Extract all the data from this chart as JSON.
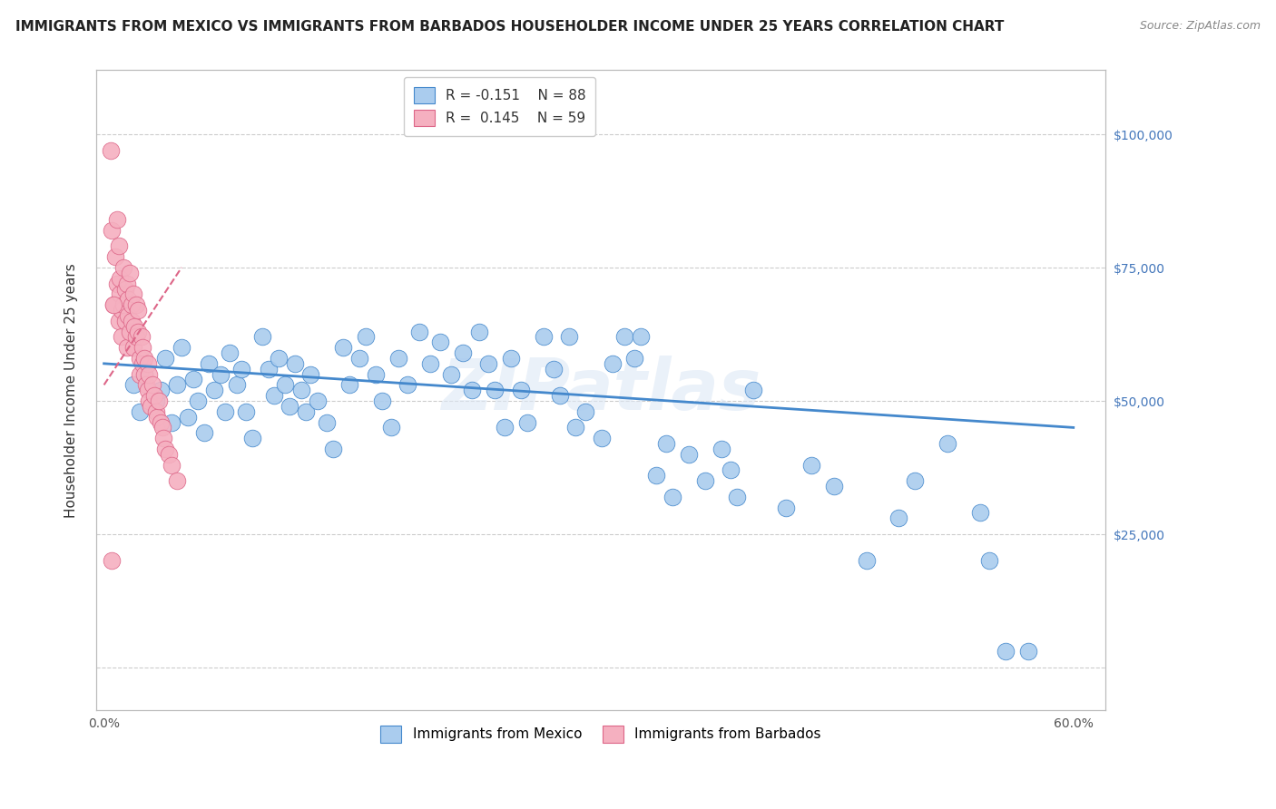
{
  "title": "IMMIGRANTS FROM MEXICO VS IMMIGRANTS FROM BARBADOS HOUSEHOLDER INCOME UNDER 25 YEARS CORRELATION CHART",
  "source": "Source: ZipAtlas.com",
  "ylabel": "Householder Income Under 25 years",
  "xlim": [
    -0.005,
    0.62
  ],
  "ylim": [
    -8000,
    112000
  ],
  "yticks": [
    0,
    25000,
    50000,
    75000,
    100000
  ],
  "right_ytick_labels": [
    "",
    "$25,000",
    "$50,000",
    "$75,000",
    "$100,000"
  ],
  "xticks": [
    0.0,
    0.1,
    0.2,
    0.3,
    0.4,
    0.5,
    0.6
  ],
  "xtick_labels": [
    "0.0%",
    "",
    "",
    "",
    "",
    "",
    "60.0%"
  ],
  "color_mexico": "#aaccee",
  "color_barbados": "#f5b0c0",
  "color_line_mexico": "#4488cc",
  "color_line_barbados": "#dd6688",
  "color_right_axis": "#4477bb",
  "watermark": "ZIPatlas",
  "mexico_x": [
    0.018,
    0.022,
    0.025,
    0.032,
    0.035,
    0.038,
    0.042,
    0.045,
    0.048,
    0.052,
    0.055,
    0.058,
    0.062,
    0.065,
    0.068,
    0.072,
    0.075,
    0.078,
    0.082,
    0.085,
    0.088,
    0.092,
    0.098,
    0.102,
    0.105,
    0.108,
    0.112,
    0.115,
    0.118,
    0.122,
    0.125,
    0.128,
    0.132,
    0.138,
    0.142,
    0.148,
    0.152,
    0.158,
    0.162,
    0.168,
    0.172,
    0.178,
    0.182,
    0.188,
    0.195,
    0.202,
    0.208,
    0.215,
    0.222,
    0.228,
    0.232,
    0.238,
    0.242,
    0.248,
    0.252,
    0.258,
    0.262,
    0.272,
    0.278,
    0.282,
    0.288,
    0.292,
    0.298,
    0.308,
    0.315,
    0.322,
    0.328,
    0.332,
    0.342,
    0.348,
    0.352,
    0.362,
    0.372,
    0.382,
    0.388,
    0.392,
    0.402,
    0.422,
    0.438,
    0.452,
    0.472,
    0.492,
    0.502,
    0.522,
    0.542,
    0.548,
    0.558,
    0.572
  ],
  "mexico_y": [
    53000,
    48000,
    55000,
    50000,
    52000,
    58000,
    46000,
    53000,
    60000,
    47000,
    54000,
    50000,
    44000,
    57000,
    52000,
    55000,
    48000,
    59000,
    53000,
    56000,
    48000,
    43000,
    62000,
    56000,
    51000,
    58000,
    53000,
    49000,
    57000,
    52000,
    48000,
    55000,
    50000,
    46000,
    41000,
    60000,
    53000,
    58000,
    62000,
    55000,
    50000,
    45000,
    58000,
    53000,
    63000,
    57000,
    61000,
    55000,
    59000,
    52000,
    63000,
    57000,
    52000,
    45000,
    58000,
    52000,
    46000,
    62000,
    56000,
    51000,
    62000,
    45000,
    48000,
    43000,
    57000,
    62000,
    58000,
    62000,
    36000,
    42000,
    32000,
    40000,
    35000,
    41000,
    37000,
    32000,
    52000,
    30000,
    38000,
    34000,
    20000,
    28000,
    35000,
    42000,
    29000,
    20000,
    3000,
    3000
  ],
  "barbados_x": [
    0.004,
    0.005,
    0.006,
    0.007,
    0.008,
    0.008,
    0.009,
    0.009,
    0.01,
    0.01,
    0.011,
    0.011,
    0.012,
    0.012,
    0.013,
    0.013,
    0.014,
    0.014,
    0.015,
    0.015,
    0.016,
    0.016,
    0.017,
    0.017,
    0.018,
    0.018,
    0.019,
    0.02,
    0.02,
    0.021,
    0.021,
    0.022,
    0.022,
    0.023,
    0.024,
    0.024,
    0.025,
    0.025,
    0.026,
    0.027,
    0.027,
    0.028,
    0.028,
    0.029,
    0.03,
    0.031,
    0.032,
    0.033,
    0.034,
    0.035,
    0.036,
    0.037,
    0.038,
    0.04,
    0.042,
    0.045,
    0.005,
    0.006
  ],
  "barbados_y": [
    97000,
    82000,
    68000,
    77000,
    72000,
    84000,
    65000,
    79000,
    70000,
    73000,
    67000,
    62000,
    75000,
    68000,
    71000,
    65000,
    60000,
    72000,
    66000,
    69000,
    63000,
    74000,
    68000,
    65000,
    60000,
    70000,
    64000,
    68000,
    62000,
    67000,
    63000,
    58000,
    55000,
    62000,
    57000,
    60000,
    55000,
    58000,
    53000,
    57000,
    52000,
    50000,
    55000,
    49000,
    53000,
    51000,
    48000,
    47000,
    50000,
    46000,
    45000,
    43000,
    41000,
    40000,
    38000,
    35000,
    20000,
    68000
  ],
  "mexico_trend_x": [
    0.0,
    0.6
  ],
  "mexico_trend_y": [
    57000,
    45000
  ],
  "barbados_trend_x": [
    0.0,
    0.048
  ],
  "barbados_trend_y": [
    53000,
    75000
  ],
  "background_color": "#ffffff",
  "grid_color": "#cccccc",
  "title_fontsize": 11,
  "axis_label_fontsize": 11,
  "tick_fontsize": 10,
  "legend_fontsize": 11
}
